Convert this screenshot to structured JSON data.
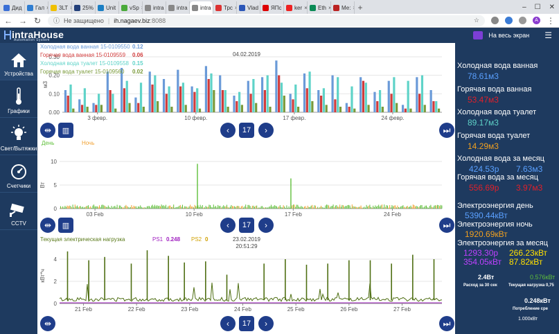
{
  "browser": {
    "tabs": [
      {
        "label": "Дид",
        "color": "#3b6fd6"
      },
      {
        "label": "Гал",
        "color": "#2f7dd1"
      },
      {
        "label": "3LT",
        "color": "#f0c000"
      },
      {
        "label": "25%",
        "color": "#23407a"
      },
      {
        "label": "Unit",
        "color": "#1b7fc4"
      },
      {
        "label": "vSp",
        "color": "#4aaa3a"
      },
      {
        "label": "intra",
        "color": "#888888"
      },
      {
        "label": "intra",
        "color": "#888888"
      },
      {
        "label": "intra",
        "color": "#888888"
      },
      {
        "label": "Трс",
        "color": "#d33"
      },
      {
        "label": "Vlad",
        "color": "#2b56b8"
      },
      {
        "label": "ЯПс",
        "color": "#d00"
      },
      {
        "label": "ker",
        "color": "#e22"
      },
      {
        "label": "Eth",
        "color": "#0a8a55"
      },
      {
        "label": "Ме:",
        "color": "#b22"
      }
    ],
    "active_tab_index": 8,
    "security_label": "Не защищено",
    "url": "ih.nagaev.biz",
    "port": ":8088",
    "profile_letter": "A"
  },
  "header": {
    "logo_title": "intraHouse",
    "logo_subtitle": "Automation System",
    "fullscreen_label": "На весь экран"
  },
  "sidebar": {
    "items": [
      {
        "label": "Устройства",
        "icon": "house-icon"
      },
      {
        "label": "Графики",
        "icon": "thermometer-icon"
      },
      {
        "label": "Свет/Вытяжки",
        "icon": "bulb-icon"
      },
      {
        "label": "Счетчики",
        "icon": "gauge-icon"
      },
      {
        "label": "CCTV",
        "icon": "camera-icon"
      }
    ]
  },
  "chart_data": [
    {
      "type": "bar",
      "title": "04.02.2019",
      "ylabel": "м3",
      "ylim": [
        0,
        0.3
      ],
      "yticks": [
        "0.00",
        "0.10",
        "0.20",
        "0.30"
      ],
      "xticks": [
        {
          "label": "3 февр.",
          "day": 3
        },
        {
          "label": "10 февр.",
          "day": 10
        },
        {
          "label": "17 февр.",
          "day": 17
        },
        {
          "label": "24 февр.",
          "day": 24
        }
      ],
      "legend": [
        {
          "name": "Холодная вода ванная 15-0109550",
          "value": "0.12",
          "color": "#6a9ad8"
        },
        {
          "name": "Горячая вода ванная 15-0109559",
          "value": "0.06",
          "color": "#d13b3b"
        },
        {
          "name": "Холодная вода туалет 15-0109558",
          "value": "0.15",
          "color": "#5fd3c8"
        },
        {
          "name": "Горячая вода туалет 15-0109560",
          "value": "0.02",
          "color": "#7a9a3a"
        }
      ],
      "days": [
        1,
        2,
        3,
        4,
        5,
        6,
        7,
        8,
        9,
        10,
        11,
        12,
        13,
        14,
        15,
        16,
        17,
        18,
        19,
        20,
        21,
        22,
        23,
        24,
        25,
        26,
        27
      ],
      "series": [
        {
          "name": "Холодная вода ванная",
          "color": "#6a9ad8",
          "values": [
            0.12,
            0.07,
            0.05,
            0.22,
            0.24,
            0.08,
            0.22,
            0.18,
            0.23,
            0.14,
            0.25,
            0.2,
            0.09,
            0.17,
            0.19,
            0.28,
            0.1,
            0.21,
            0.12,
            0.2,
            0.05,
            0.19,
            0.11,
            0.17,
            0.04,
            0.19,
            0.12
          ]
        },
        {
          "name": "Горячая вода ванная",
          "color": "#d13b3b",
          "values": [
            0.09,
            0.04,
            0.04,
            0.12,
            0.13,
            0.05,
            0.15,
            0.1,
            0.14,
            0.11,
            0.18,
            0.12,
            0.06,
            0.1,
            0.12,
            0.2,
            0.07,
            0.13,
            0.09,
            0.07,
            0.03,
            0.17,
            0.06,
            0.1,
            0.02,
            0.1,
            0.06
          ]
        },
        {
          "name": "Холодная вода туалет",
          "color": "#5fd3c8",
          "values": [
            0.15,
            0.13,
            0.1,
            0.1,
            0.17,
            0.16,
            0.2,
            0.14,
            0.16,
            0.13,
            0.21,
            0.12,
            0.11,
            0.18,
            0.2,
            0.16,
            0.15,
            0.22,
            0.13,
            0.19,
            0.14,
            0.16,
            0.12,
            0.19,
            0.17,
            0.2,
            0.06
          ]
        },
        {
          "name": "Горячая вода туалет",
          "color": "#7a9a3a",
          "values": [
            0.02,
            0.03,
            0.04,
            0.02,
            0.05,
            0.03,
            0.06,
            0.03,
            0.04,
            0.02,
            0.12,
            0.03,
            0.04,
            0.05,
            0.03,
            0.09,
            0.03,
            0.06,
            0.04,
            0.03,
            0.02,
            0.04,
            0.03,
            0.05,
            0.02,
            0.04,
            0.02
          ]
        }
      ]
    },
    {
      "type": "bar",
      "title": "",
      "ylabel": "Вт",
      "ylim": [
        0,
        10
      ],
      "yticks": [
        "0",
        "5",
        "10"
      ],
      "xticks": [
        {
          "label": "03 Feb",
          "day": 3
        },
        {
          "label": "10 Feb",
          "day": 10
        },
        {
          "label": "17 Feb",
          "day": 17
        },
        {
          "label": "24 Feb",
          "day": 24
        }
      ],
      "legend": [
        {
          "name": "День",
          "value": "",
          "color": "#5fbf3a"
        },
        {
          "name": "Ночь",
          "value": "",
          "color": "#f0a030"
        }
      ],
      "spikes": [
        {
          "day": 10.2,
          "value": 9.5
        },
        {
          "day": 16.8,
          "value": 6.4
        }
      ]
    },
    {
      "type": "line",
      "title": "23.02.2019",
      "subtitle": "20:51:29",
      "ylabel": "кВт*ч",
      "ylim": [
        0,
        5
      ],
      "yticks": [
        "0",
        "2",
        "4"
      ],
      "xticks": [
        {
          "label": "21 Feb",
          "day": 21
        },
        {
          "label": "22 Feb",
          "day": 22
        },
        {
          "label": "23 Feb",
          "day": 23
        },
        {
          "label": "24 Feb",
          "day": 24
        },
        {
          "label": "25 Feb",
          "day": 25
        },
        {
          "label": "26 Feb",
          "day": 26
        },
        {
          "label": "27 Feb",
          "day": 27
        }
      ],
      "legend": [
        {
          "name": "Текущая электрическая нагрузка",
          "value": "",
          "color": "#5a7a1a"
        },
        {
          "name": "PS1",
          "value": "0.248",
          "color": "#a020c0"
        },
        {
          "name": "PS2",
          "value": "0",
          "color": "#d0a000"
        }
      ],
      "peaks": [
        {
          "day": 20.7,
          "value": 4.7
        },
        {
          "day": 21.1,
          "value": 3.9
        },
        {
          "day": 21.4,
          "value": 4.2
        },
        {
          "day": 21.9,
          "value": 3.6
        },
        {
          "day": 22.2,
          "value": 4.8
        },
        {
          "day": 22.6,
          "value": 4.3
        },
        {
          "day": 22.9,
          "value": 3.7
        },
        {
          "day": 23.3,
          "value": 3.8
        },
        {
          "day": 23.7,
          "value": 2.6
        },
        {
          "day": 24.4,
          "value": 3.6
        },
        {
          "day": 24.8,
          "value": 4.0
        },
        {
          "day": 25.2,
          "value": 3.5
        },
        {
          "day": 25.6,
          "value": 3.6
        },
        {
          "day": 26.0,
          "value": 3.9
        },
        {
          "day": 26.4,
          "value": 3.9
        },
        {
          "day": 26.8,
          "value": 3.6
        },
        {
          "day": 27.2,
          "value": 4.4
        },
        {
          "day": 27.6,
          "value": 4.0
        }
      ]
    }
  ],
  "right_panel": {
    "cold_bath": {
      "label": "Холодная вода ванная",
      "value": "78.61м3"
    },
    "hot_bath": {
      "label": "Горячая вода ванная",
      "value": "53.47м3"
    },
    "cold_toilet": {
      "label": "Холодная вода туалет",
      "value": "89.17м3"
    },
    "hot_toilet": {
      "label": "Горячая вода туалет",
      "value": "14.29м3"
    },
    "cold_month": {
      "label": "Холодная вода за месяц",
      "value1": "424.53р",
      "value2": "7.63м3"
    },
    "hot_month": {
      "label": "Горячая вода за месяц",
      "value1": "556.69р",
      "value2": "3.97м3"
    },
    "energy_day": {
      "label": "Электроэнергия день",
      "value": "5390.44кВт"
    },
    "energy_night": {
      "label": "Электроэнергия ночь",
      "value": "1920.69кВт"
    },
    "energy_month": {
      "label": "Электроэнергия за месяц",
      "v1": "1293.30р",
      "v2": "266.23кВт",
      "v3": "354.05кВт",
      "v4": "87.82кВт"
    },
    "consumption30": {
      "value": "2.4Вт",
      "label": "Расход за 30 сек"
    },
    "current_load": {
      "value": "0.576кВт",
      "label": "Текущая нагрузка 0,75"
    },
    "avg_consumption": {
      "value": "0.248кВт",
      "label": "Потребление сре"
    },
    "bottom_value": "1.000кВт"
  },
  "colors": {
    "panel_bg": "#1e3a5f",
    "button_bg": "#1f3d8a",
    "cold": "#5aa0ff",
    "hot": "#e0202a",
    "cold_toilet": "#5fd3c8",
    "hot_toilet": "#f0a020",
    "purple": "#c040ff",
    "yellow": "#ffe000"
  }
}
